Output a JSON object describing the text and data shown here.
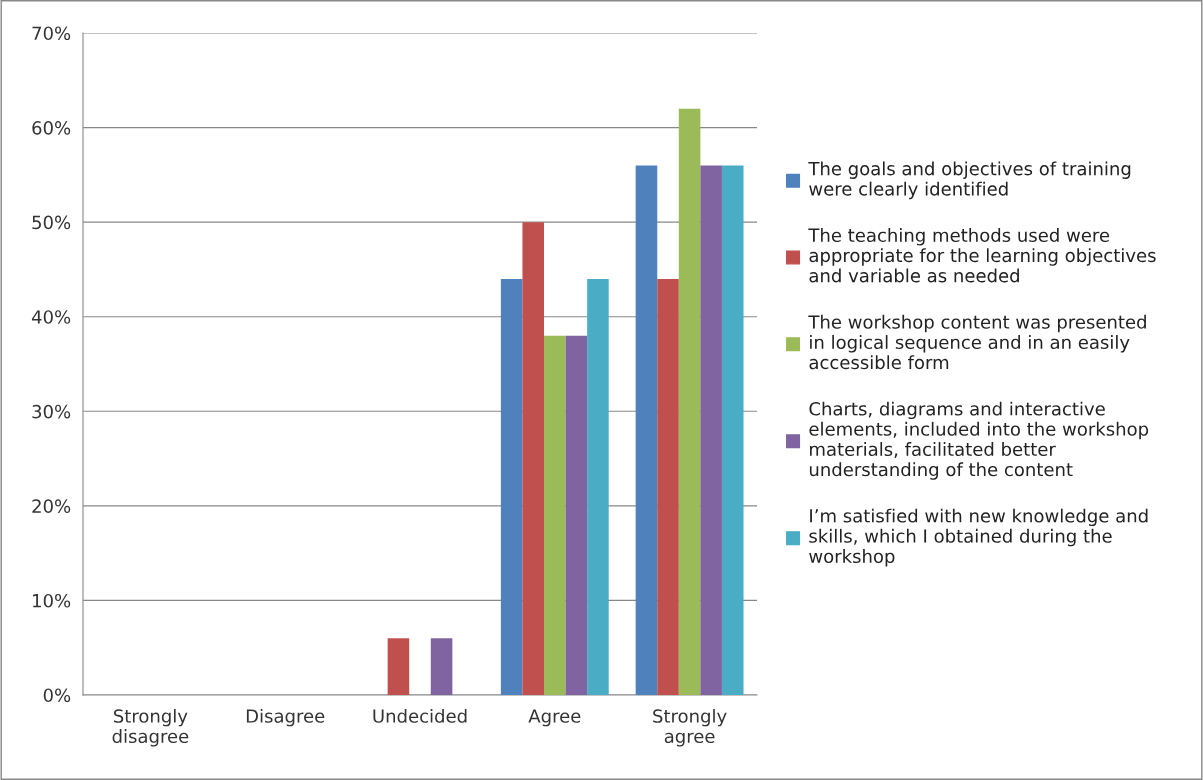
{
  "chart_data": {
    "type": "bar",
    "categories": [
      "Strongly\ndisagree",
      "Disagree",
      "Undecided",
      "Agree",
      "Strongly\nagree"
    ],
    "series": [
      {
        "name": "The goals and objectives of training\nwere clearly identified",
        "color": "#4f81bd",
        "values": [
          0,
          0,
          0,
          44,
          56
        ]
      },
      {
        "name": "The teaching methods used were\nappropriate for the learning objectives\nand variable as needed",
        "color": "#c0504d",
        "values": [
          0,
          0,
          6,
          50,
          44
        ]
      },
      {
        "name": "The workshop content was presented\nin logical sequence and in an easily\naccessible form",
        "color": "#9bbb59",
        "values": [
          0,
          0,
          0,
          38,
          62
        ]
      },
      {
        "name": "Charts, diagrams and interactive\nelements, included into the workshop\nmaterials, facilitated better\nunderstanding of the content",
        "color": "#8064a2",
        "values": [
          0,
          0,
          6,
          38,
          56
        ]
      },
      {
        "name": "I’m satisfied with new knowledge and\nskills, which I obtained during the\nworkshop",
        "color": "#4bacc6",
        "values": [
          0,
          0,
          0,
          44,
          56
        ]
      }
    ],
    "ylim": [
      0,
      70
    ],
    "yticks": [
      {
        "value": 0,
        "label": "0%"
      },
      {
        "value": 10,
        "label": "10%"
      },
      {
        "value": 20,
        "label": "20%"
      },
      {
        "value": 30,
        "label": "30%"
      },
      {
        "value": 40,
        "label": "40%"
      },
      {
        "value": 50,
        "label": "50%"
      },
      {
        "value": 60,
        "label": "60%"
      },
      {
        "value": 70,
        "label": "70%"
      }
    ],
    "grid": "y",
    "legend": "right"
  }
}
